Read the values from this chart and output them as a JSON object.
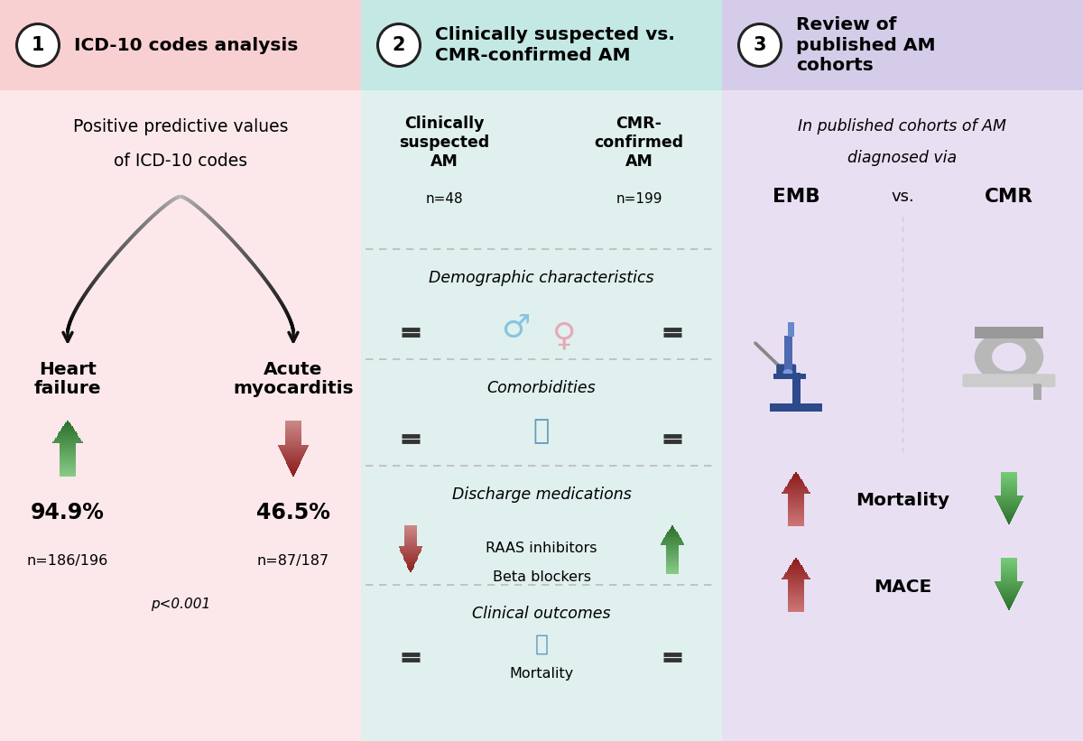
{
  "panel1_bg": "#fce8ea",
  "panel2_bg": "#dff0ee",
  "panel3_bg": "#e8e0f2",
  "panel1_header": "#f8d0d2",
  "panel2_header": "#c4e8e4",
  "panel3_header": "#d4cce8",
  "header_num1": "1",
  "header_num2": "2",
  "header_num3": "3",
  "header_title1": "ICD-10 codes analysis",
  "header_title2": "Clinically suspected vs.\nCMR-confirmed AM",
  "header_title3": "Review of\npublished AM\ncohorts",
  "p1_sub1": "Positive predictive values",
  "p1_sub2": "of ICD-10 codes",
  "p1_left_label": "Heart\nfailure",
  "p1_right_label": "Acute\nmyocarditis",
  "p1_left_pct": "94.9%",
  "p1_right_pct": "46.5%",
  "p1_left_n": "n=186/196",
  "p1_right_n": "n=87/187",
  "p1_pval": "p<0.001",
  "p2_left_title": "Clinically\nsuspected\nAM",
  "p2_left_n": "n=48",
  "p2_right_title": "CMR-\nconfirmed\nAM",
  "p2_right_n": "n=199",
  "p2_section1": "Demographic characteristics",
  "p2_section2": "Comorbidities",
  "p2_section3": "Discharge medications",
  "p2_med1": "RAAS inhibitors",
  "p2_med2": "Beta blockers",
  "p2_section4": "Clinical outcomes",
  "p2_outcome1": "Mortality",
  "p3_sub1": "In published cohorts of AM",
  "p3_sub2": "diagnosed via",
  "p3_left_label": "EMB",
  "p3_vs": "vs.",
  "p3_right_label": "CMR",
  "p3_outcome1": "Mortality",
  "p3_outcome2": "MACE",
  "green_up": "#2a6e2a",
  "red_down": "#8b1a1a",
  "equal_color": "#333333",
  "dashed_color": "#bbbbbb",
  "arch_dark": "#111111",
  "arch_light": "#bbbbbb",
  "male_color": "#89c4e1",
  "female_color": "#e8a8b8",
  "icon_blue": "#6699bb"
}
